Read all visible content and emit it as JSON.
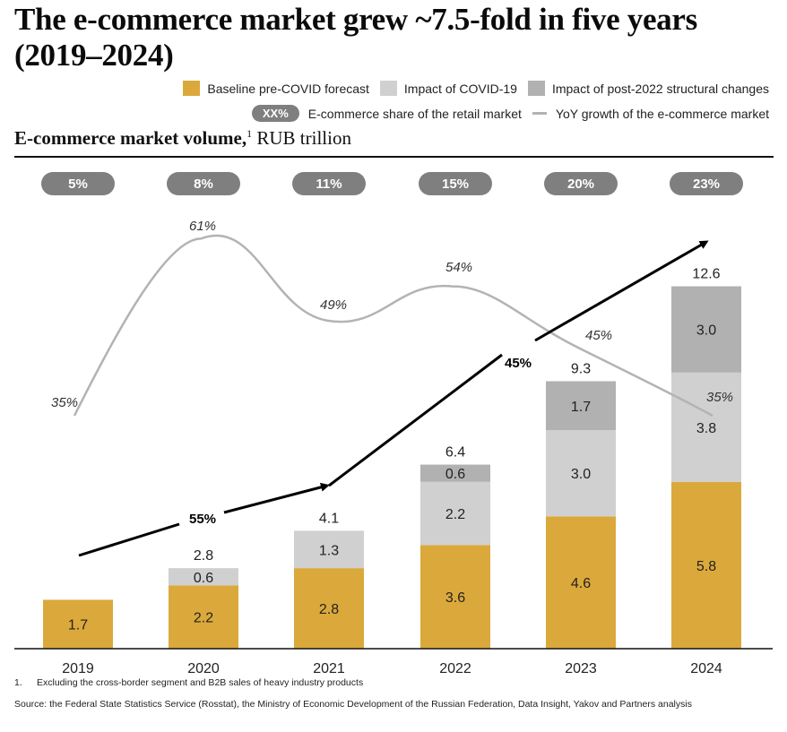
{
  "title": "The e-commerce market grew ~7.5-fold in five years (2019–2024)",
  "legend": {
    "baseline": "Baseline pre-COVID forecast",
    "covid": "Impact of COVID-19",
    "post2022": "Impact of post-2022 structural changes",
    "share_pill": "XX%",
    "share": "E-commerce share of the retail market",
    "yoy": "YoY growth of the e-commerce market"
  },
  "subtitle": {
    "bold": "E-commerce market volume,",
    "sup": "1",
    "rest": "RUB trillion"
  },
  "colors": {
    "baseline": "#dba93b",
    "covid": "#d0d0d0",
    "post2022": "#b1b1b1",
    "pill": "#7f7f7f",
    "yoy_line": "#b3b3b3",
    "arrow": "#000000"
  },
  "footnote": {
    "num": "1.",
    "text": "Excluding the cross-border segment and B2B sales of heavy industry products"
  },
  "source": "Source: the Federal State Statistics Service (Rosstat), the Ministry of Economic Development of the Russian Federation, Data  Insight, Yakov and Partners analysis",
  "chart_data": {
    "type": "bar",
    "stacked": true,
    "title": "E-commerce market volume, RUB trillion",
    "xlabel": "",
    "ylabel": "RUB trillion",
    "ylim": [
      0,
      13
    ],
    "grid": false,
    "legend_position": "top-right",
    "categories": [
      "2019",
      "2020",
      "2021",
      "2022",
      "2023",
      "2024"
    ],
    "series": [
      {
        "name": "Baseline pre-COVID forecast",
        "key": "baseline",
        "values": [
          1.7,
          2.2,
          2.8,
          3.6,
          4.6,
          5.8
        ]
      },
      {
        "name": "Impact of COVID-19",
        "key": "covid",
        "values": [
          0,
          0.6,
          1.3,
          2.2,
          3.0,
          3.8
        ]
      },
      {
        "name": "Impact of post-2022 structural changes",
        "key": "post2022",
        "values": [
          0,
          0,
          0,
          0.6,
          1.7,
          3.0
        ]
      }
    ],
    "segment_labels": [
      [
        "1.7",
        "",
        ""
      ],
      [
        "2.2",
        "0.6",
        ""
      ],
      [
        "2.8",
        "1.3",
        ""
      ],
      [
        "3.6",
        "2.2",
        "0.6"
      ],
      [
        "4.6",
        "3.0",
        "1.7"
      ],
      [
        "5.8",
        "3.8",
        "3.0"
      ]
    ],
    "totals": [
      "",
      "2.8",
      "4.1",
      "6.4",
      "9.3",
      "12.6"
    ],
    "retail_share": [
      "5%",
      "8%",
      "11%",
      "15%",
      "20%",
      "23%"
    ],
    "yoy_growth": {
      "name": "YoY growth of the e-commerce market",
      "labels": [
        "35%",
        "61%",
        "49%",
        "54%",
        "45%",
        "35%"
      ],
      "values": [
        35,
        61,
        49,
        54,
        45,
        35
      ]
    },
    "cagr_arrows": [
      {
        "from": "2019",
        "to": "2021",
        "label": "55%"
      },
      {
        "from": "2021",
        "to": "2024",
        "label": "45%"
      }
    ]
  }
}
